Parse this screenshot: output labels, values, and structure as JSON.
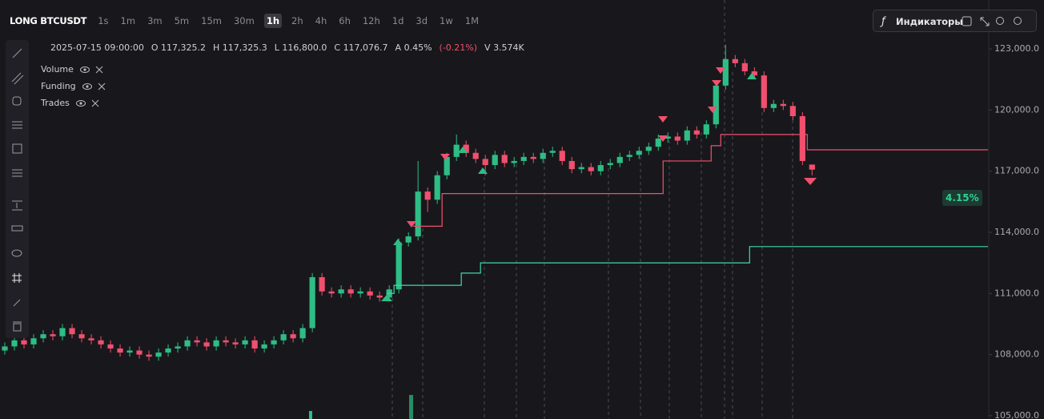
{
  "toolbar": {
    "symbol": "LONG BTCUSDT",
    "intervals": [
      "1s",
      "1m",
      "3m",
      "5m",
      "15m",
      "30m",
      "1h",
      "2h",
      "4h",
      "6h",
      "12h",
      "1d",
      "3d",
      "1w",
      "1M"
    ],
    "indicators_button": "Индикаторы"
  },
  "legend": {
    "time": "2025-07-15 09:00:00",
    "fields": [
      {
        "label": "O",
        "value": "117,325.2"
      },
      {
        "label": "H",
        "value": "117,325.3"
      },
      {
        "label": "L",
        "value": "116,800.0"
      },
      {
        "label": "C",
        "value": "117,076.7"
      },
      {
        "label": "A",
        "value": "0.45%"
      }
    ],
    "change": "(-0.21%)",
    "volume_label": "V",
    "volume": "3.574K"
  },
  "indicators": [
    "Volume",
    "Funding",
    "Trades"
  ],
  "badge": "4.15%",
  "chart_data": {
    "type": "candlestick",
    "up_color": "#2ebd85",
    "down_color": "#f0506e",
    "xlim": [
      -0.5,
      102.3
    ],
    "ylim": [
      104840,
      125400
    ],
    "yticks": [
      {
        "value": 105000,
        "label": "105,000.0"
      },
      {
        "value": 108000,
        "label": "108,000.0"
      },
      {
        "value": 111000,
        "label": "111,000.0"
      },
      {
        "value": 114000,
        "label": "114,000.0"
      },
      {
        "value": 117000,
        "label": "117,000.0"
      },
      {
        "value": 120000,
        "label": "120,000.0"
      },
      {
        "value": 123000,
        "label": "123,000.0"
      }
    ],
    "open": [
      108200,
      108400,
      108700,
      108500,
      108800,
      109000,
      108900,
      109300,
      109000,
      108800,
      108700,
      108500,
      108300,
      108100,
      108200,
      108000,
      107900,
      108100,
      108300,
      108400,
      108700,
      108600,
      108400,
      108700,
      108600,
      108500,
      108700,
      108300,
      108500,
      108700,
      109000,
      108800,
      109300,
      111800,
      111100,
      111000,
      111200,
      111000,
      111100,
      110900,
      110800,
      111200,
      113500,
      113800,
      116000,
      115600,
      116800,
      117700,
      118300,
      117900,
      117600,
      117300,
      117800,
      117400,
      117500,
      117700,
      117600,
      117900,
      118000,
      117500,
      117100,
      117200,
      117000,
      117300,
      117400,
      117700,
      117800,
      118000,
      118200,
      118600,
      118700,
      118500,
      119000,
      118800,
      119300,
      121200,
      122500,
      122300,
      121900,
      121700,
      120100,
      120300,
      120200,
      119700,
      117325.2
    ],
    "high": [
      108600,
      108900,
      108900,
      109000,
      109200,
      109200,
      109500,
      109500,
      109200,
      109000,
      108900,
      108700,
      108500,
      108400,
      108400,
      108200,
      108300,
      108500,
      108600,
      108900,
      108900,
      108800,
      108900,
      108900,
      108800,
      108900,
      108900,
      108700,
      108900,
      109200,
      109200,
      109500,
      112000,
      112000,
      111300,
      111400,
      111400,
      111300,
      111300,
      111100,
      111400,
      113700,
      114000,
      117500,
      116200,
      117000,
      117900,
      118800,
      118500,
      118100,
      117800,
      118000,
      118000,
      117700,
      117900,
      117900,
      118100,
      118200,
      118200,
      117700,
      117400,
      117400,
      117500,
      117600,
      117900,
      118000,
      118200,
      118400,
      118800,
      118900,
      118900,
      119200,
      119200,
      119500,
      121400,
      123200,
      122700,
      122500,
      122100,
      121900,
      120500,
      120500,
      120400,
      119900,
      117325.3
    ],
    "low": [
      108000,
      108200,
      108300,
      108300,
      108600,
      108700,
      108700,
      108800,
      108600,
      108500,
      108300,
      108100,
      107900,
      107900,
      107800,
      107700,
      107700,
      107900,
      108100,
      108200,
      108400,
      108200,
      108200,
      108400,
      108300,
      108300,
      108100,
      108100,
      108300,
      108500,
      108600,
      108600,
      109100,
      110900,
      110800,
      110800,
      110800,
      110800,
      110700,
      110600,
      110600,
      111000,
      113300,
      113600,
      115000,
      115400,
      116600,
      117500,
      117700,
      117400,
      116800,
      117100,
      117200,
      117200,
      117300,
      117400,
      117400,
      117700,
      117300,
      116900,
      116900,
      116800,
      116800,
      117100,
      117200,
      117500,
      117600,
      117800,
      118000,
      118400,
      118300,
      118300,
      118600,
      118600,
      119100,
      121000,
      122100,
      121700,
      121500,
      119900,
      119900,
      120000,
      119500,
      117300,
      116800
    ],
    "close": [
      108400,
      108700,
      108500,
      108800,
      109000,
      108900,
      109300,
      109000,
      108800,
      108700,
      108500,
      108300,
      108100,
      108200,
      108000,
      107900,
      108100,
      108300,
      108400,
      108700,
      108600,
      108400,
      108700,
      108600,
      108500,
      108700,
      108300,
      108500,
      108700,
      109000,
      108800,
      109300,
      111800,
      111100,
      111000,
      111200,
      111000,
      111100,
      110900,
      110800,
      111200,
      113500,
      113800,
      116000,
      115600,
      116800,
      117700,
      118300,
      117900,
      117600,
      117300,
      117800,
      117400,
      117500,
      117700,
      117600,
      117900,
      118000,
      117500,
      117100,
      117200,
      117000,
      117300,
      117400,
      117700,
      117800,
      118000,
      118200,
      118600,
      118700,
      118500,
      119000,
      118800,
      119300,
      121200,
      122500,
      122300,
      121900,
      121700,
      120100,
      120300,
      120200,
      119700,
      117500,
      117076.7
    ],
    "lines": [
      {
        "color": "#f0506e",
        "x": [
          42.5,
          45.5,
          68.5,
          73.5,
          74.5,
          83.5,
          102.3
        ],
        "values": [
          114300,
          115900,
          117500,
          118250,
          118800,
          118050,
          118050
        ]
      },
      {
        "color": "#3fd9a8",
        "x": [
          39.7,
          40.5,
          47.5,
          49.5,
          77.5,
          102.3
        ],
        "values": [
          111000,
          111400,
          112000,
          112500,
          113300,
          113300
        ]
      }
    ]
  }
}
